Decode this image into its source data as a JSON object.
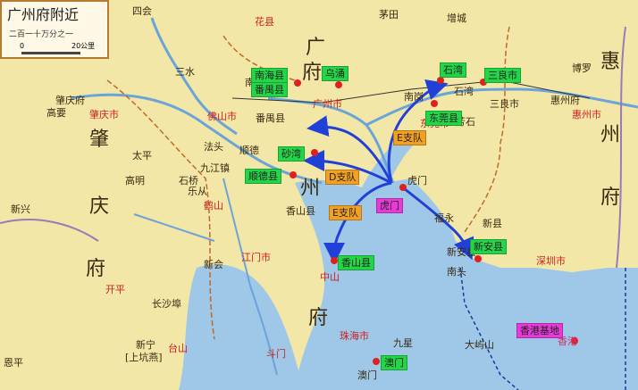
{
  "title": "广州府附近",
  "scale": {
    "text": "二百一十万分之一",
    "zero": "0",
    "twenty": "20公里"
  },
  "big_labels": {
    "guang": "广",
    "zhou": "州",
    "fu_top": "府",
    "zhao": "肇",
    "qing": "庆",
    "fu_left": "府",
    "hui": "惠",
    "zhou_right": "州",
    "fu_right": "府",
    "fu_bottom": "府"
  },
  "places": {
    "sihui": "四会",
    "huaxian": "花县",
    "maotian": "茅田",
    "zengcheng": "增城",
    "nangang": "南岗",
    "zhaoqingfu": "肇庆府",
    "gaoyao": "高要",
    "zhaoqingshi": "肇庆市",
    "gaoming": "高明",
    "xinxing": "新兴",
    "taiping": "太平",
    "fatuo": "法头",
    "shiqiao": "石桥",
    "heshan": "鹤山",
    "xinhui": "新会",
    "jiangmen": "江门市",
    "kaiping": "开平",
    "changsha": "长沙埠",
    "xinning": "新宁",
    "shangchuan": "[上坑燕]",
    "taishan": "台山",
    "enping": "恩平",
    "zhongshan": "中山",
    "zhuhai": "珠海市",
    "jiuxing": "九星",
    "doumen": "斗门",
    "dayushan": "大屿山",
    "shenzhen": "深圳市",
    "xinxian": "新县",
    "fuyong": "福永",
    "nantou": "南头",
    "huizhoufu": "惠州府",
    "boluo": "博罗",
    "huizhoushi": "惠州市",
    "dongguan": "东莞市",
    "fangshi": "芳石",
    "sanshui": "三水",
    "foshan": "佛山市",
    "nanhaixian": "南海县",
    "panyu": "番禺县",
    "guangzhou": "广州市",
    "shunde": "顺德",
    "jiujiang": "九江镇",
    "lile": "乐从",
    "xiangshan": "香山县",
    "humen": "虎门",
    "shiwan": "石湾",
    "sanlian": "三良市",
    "xinan": "新安县",
    "aomen_shi": "澳门",
    "xianggang_shi": "香港"
  },
  "tags": {
    "nanhai": "南海县",
    "panyu": "番禺县",
    "wuyong": "乌涌",
    "shiwan": "石湾",
    "sanliangshi": "三良市",
    "dongguan": "东莞县",
    "shawan": "砂湾",
    "shunde": "顺德县",
    "humen": "虎门",
    "xiangshan": "香山县",
    "xinan": "新安县",
    "aomen": "澳门",
    "hongkong": "香港基地",
    "e_upper": "E支队",
    "d": "D支队",
    "e_lower": "E支队"
  },
  "colors": {
    "land": "#f3e7a8",
    "water": "#9fc7e8",
    "border": "#b67a30",
    "river": "#6aa4d8",
    "arrow": "#2040d8",
    "dot": "#e02020"
  }
}
